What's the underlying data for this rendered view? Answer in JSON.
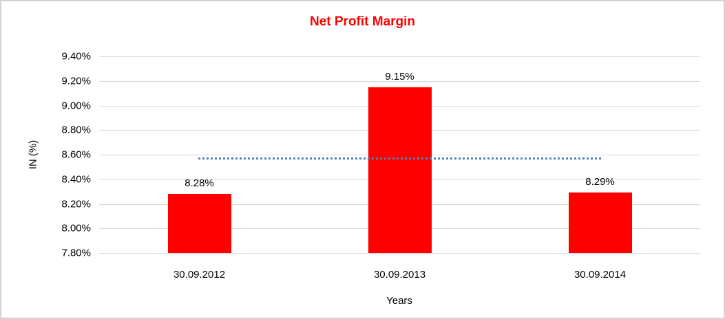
{
  "chart_data": {
    "type": "bar",
    "title": "Net Profit Margin",
    "title_color": "#ff0000",
    "xlabel": "Years",
    "ylabel": "IN (%)",
    "categories": [
      "30.09.2012",
      "30.09.2013",
      "30.09.2014"
    ],
    "values": [
      8.28,
      9.15,
      8.29
    ],
    "data_labels": [
      "8.28%",
      "9.15%",
      "8.29%"
    ],
    "bar_color": "#ff0000",
    "y_ticks": [
      {
        "label": "9.40%",
        "value": 9.4
      },
      {
        "label": "9.20%",
        "value": 9.2
      },
      {
        "label": "9.00%",
        "value": 9.0
      },
      {
        "label": "8.80%",
        "value": 8.8
      },
      {
        "label": "8.60%",
        "value": 8.6
      },
      {
        "label": "8.40%",
        "value": 8.4
      },
      {
        "label": "8.20%",
        "value": 8.2
      },
      {
        "label": "8.00%",
        "value": 8.0
      },
      {
        "label": "7.80%",
        "value": 7.8
      }
    ],
    "ylim": [
      7.8,
      9.4
    ],
    "grid": true,
    "gridline_color": "#d9d9d9",
    "legend": "none",
    "trendline": {
      "value": 8.57,
      "style": "dotted",
      "color": "#4f81bd"
    }
  }
}
